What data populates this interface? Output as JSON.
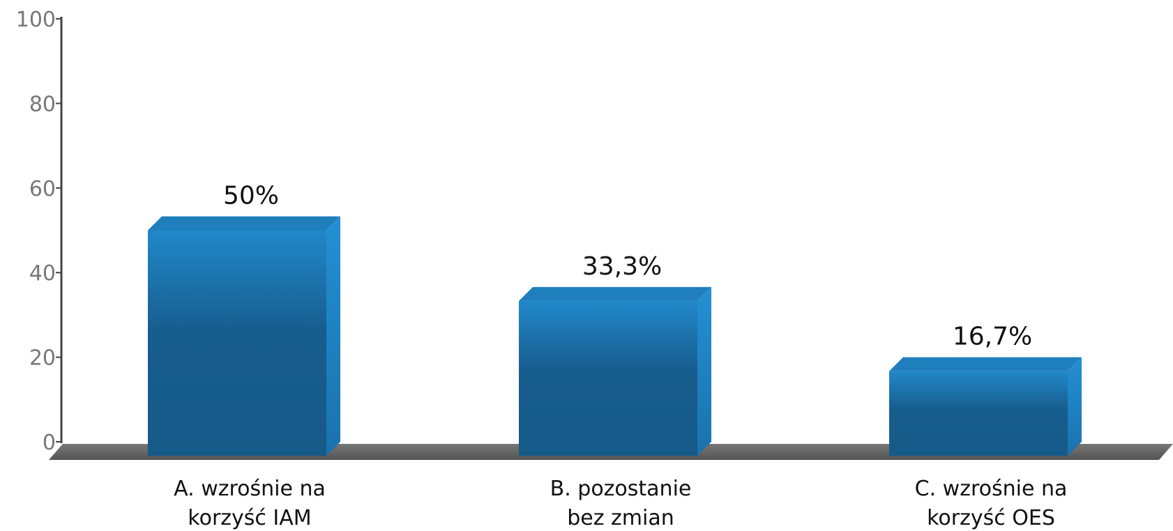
{
  "chart_data": {
    "type": "bar",
    "categories": [
      [
        "A. wzrośnie na",
        "korzyść IAM"
      ],
      [
        "B. pozostanie",
        "bez zmian"
      ],
      [
        "C. wzrośnie na",
        "korzyść OES"
      ]
    ],
    "values": [
      50,
      33.3,
      16.7
    ],
    "data_labels": [
      "50%",
      "33,3%",
      "16,7%"
    ],
    "title": "",
    "xlabel": "",
    "ylabel": "",
    "ylim": [
      0,
      100
    ],
    "yticks": [
      0,
      20,
      40,
      60,
      80,
      100
    ],
    "grid": false,
    "legend": "none",
    "colors": {
      "bar_light": "#2188c9",
      "bar_mid": "#1a6ea6",
      "bar_dark": "#165a88",
      "bar_top": "#1f7fbd",
      "bar_side": "#1b78b7",
      "floor": "#666666",
      "axis": "#444444"
    }
  }
}
